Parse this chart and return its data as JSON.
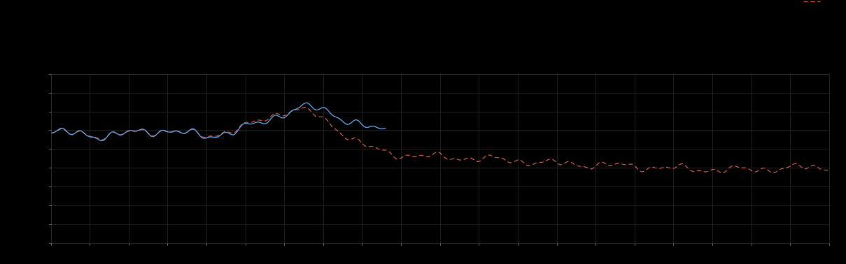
{
  "background_color": "#000000",
  "plot_bg_color": "#000000",
  "grid_color": "#2a2a2a",
  "text_color": "#cccccc",
  "line1_color": "#5599dd",
  "line2_color": "#cc5544",
  "figsize": [
    12.09,
    3.78
  ],
  "dpi": 100
}
